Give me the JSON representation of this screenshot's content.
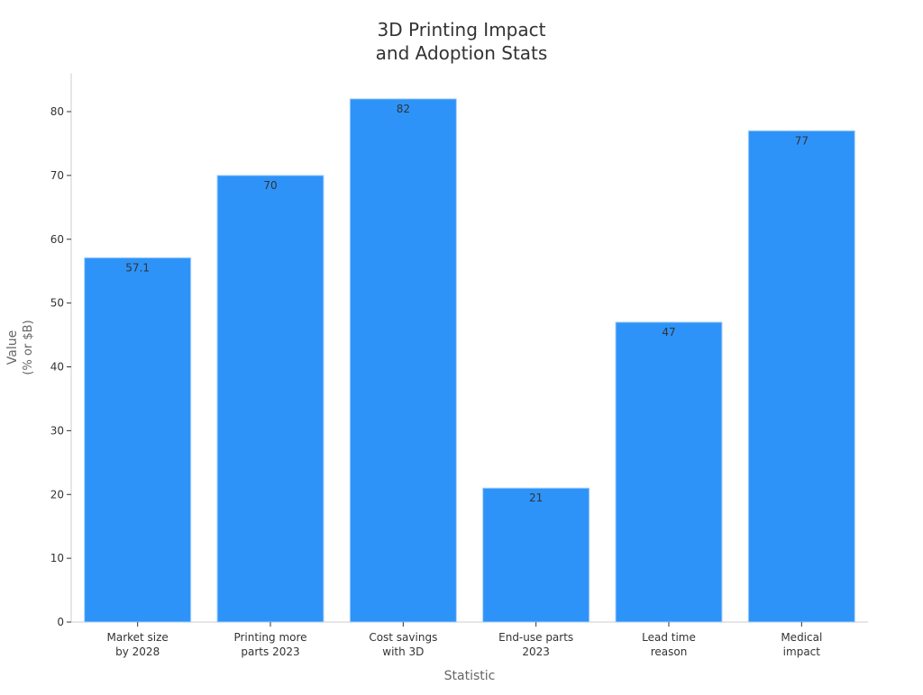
{
  "chart_data": {
    "type": "bar",
    "title_lines": [
      "3D Printing Impact",
      "and Adoption Stats"
    ],
    "xlabel": "Statistic",
    "ylabel_lines": [
      "Value",
      "(% or $B)"
    ],
    "categories": [
      [
        "Market size",
        "by 2028"
      ],
      [
        "Printing more",
        "parts 2023"
      ],
      [
        "Cost savings",
        "with 3D"
      ],
      [
        "End-use parts",
        "2023"
      ],
      [
        "Lead time",
        "reason"
      ],
      [
        "Medical",
        "impact"
      ]
    ],
    "values": [
      57.1,
      70,
      82,
      21,
      47,
      77
    ],
    "data_labels": [
      "57.1",
      "70",
      "82",
      "21",
      "47",
      "77"
    ],
    "ylim": [
      0,
      86
    ],
    "yticks": [
      0,
      10,
      20,
      30,
      40,
      50,
      60,
      70,
      80
    ],
    "grid": false,
    "bar_color": "#2e93f8",
    "bar_edge_color": "#a9d0fb"
  }
}
